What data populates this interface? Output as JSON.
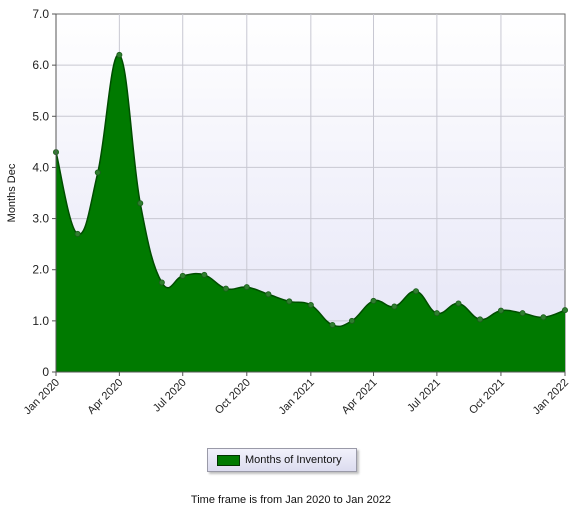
{
  "chart_data": {
    "type": "area",
    "ylabel": "Months Dec",
    "ylim": [
      0,
      7
    ],
    "y_ticks": [
      "0",
      "1.0",
      "2.0",
      "3.0",
      "4.0",
      "5.0",
      "6.0",
      "7.0"
    ],
    "x_ticks": [
      {
        "label": "Jan 2020",
        "date": "2020-01-01"
      },
      {
        "label": "Apr 2020",
        "date": "2020-04-01"
      },
      {
        "label": "Jul 2020",
        "date": "2020-07-01"
      },
      {
        "label": "Oct 2020",
        "date": "2020-10-01"
      },
      {
        "label": "Jan 2021",
        "date": "2021-01-01"
      },
      {
        "label": "Apr 2021",
        "date": "2021-04-01"
      },
      {
        "label": "Jul 2021",
        "date": "2021-07-01"
      },
      {
        "label": "Oct 2021",
        "date": "2021-10-01"
      },
      {
        "label": "Jan 2022",
        "date": "2022-01-01"
      }
    ],
    "xlim": [
      "2020-01-01",
      "2022-01-01"
    ],
    "grid": true,
    "legend_position": "bottom-center",
    "series": [
      {
        "name": "Months of Inventory",
        "color": "#007a00",
        "points": [
          {
            "x": "2020-01-01",
            "y": 4.3
          },
          {
            "x": "2020-02-01",
            "y": 2.7
          },
          {
            "x": "2020-03-01",
            "y": 3.9
          },
          {
            "x": "2020-04-01",
            "y": 6.2
          },
          {
            "x": "2020-05-01",
            "y": 3.3
          },
          {
            "x": "2020-06-01",
            "y": 1.75
          },
          {
            "x": "2020-07-01",
            "y": 1.88
          },
          {
            "x": "2020-08-01",
            "y": 1.9
          },
          {
            "x": "2020-09-01",
            "y": 1.63
          },
          {
            "x": "2020-10-01",
            "y": 1.66
          },
          {
            "x": "2020-11-01",
            "y": 1.52
          },
          {
            "x": "2020-12-01",
            "y": 1.38
          },
          {
            "x": "2021-01-01",
            "y": 1.31
          },
          {
            "x": "2021-02-01",
            "y": 0.92
          },
          {
            "x": "2021-03-01",
            "y": 1.0
          },
          {
            "x": "2021-04-01",
            "y": 1.39
          },
          {
            "x": "2021-05-01",
            "y": 1.28
          },
          {
            "x": "2021-06-01",
            "y": 1.58
          },
          {
            "x": "2021-07-01",
            "y": 1.15
          },
          {
            "x": "2021-08-01",
            "y": 1.34
          },
          {
            "x": "2021-09-01",
            "y": 1.03
          },
          {
            "x": "2021-10-01",
            "y": 1.2
          },
          {
            "x": "2021-11-01",
            "y": 1.15
          },
          {
            "x": "2021-12-01",
            "y": 1.07
          },
          {
            "x": "2022-01-01",
            "y": 1.21
          }
        ]
      }
    ],
    "caption": "Time frame is from Jan 2020 to Jan 2022"
  },
  "colors": {
    "area_fill": "#007a00",
    "area_stroke": "#004d00",
    "marker": "#2f7f2f",
    "plot_bg_top": "#ffffff",
    "plot_bg_bottom": "#e4e4f6",
    "grid": "#c8c8d2"
  }
}
